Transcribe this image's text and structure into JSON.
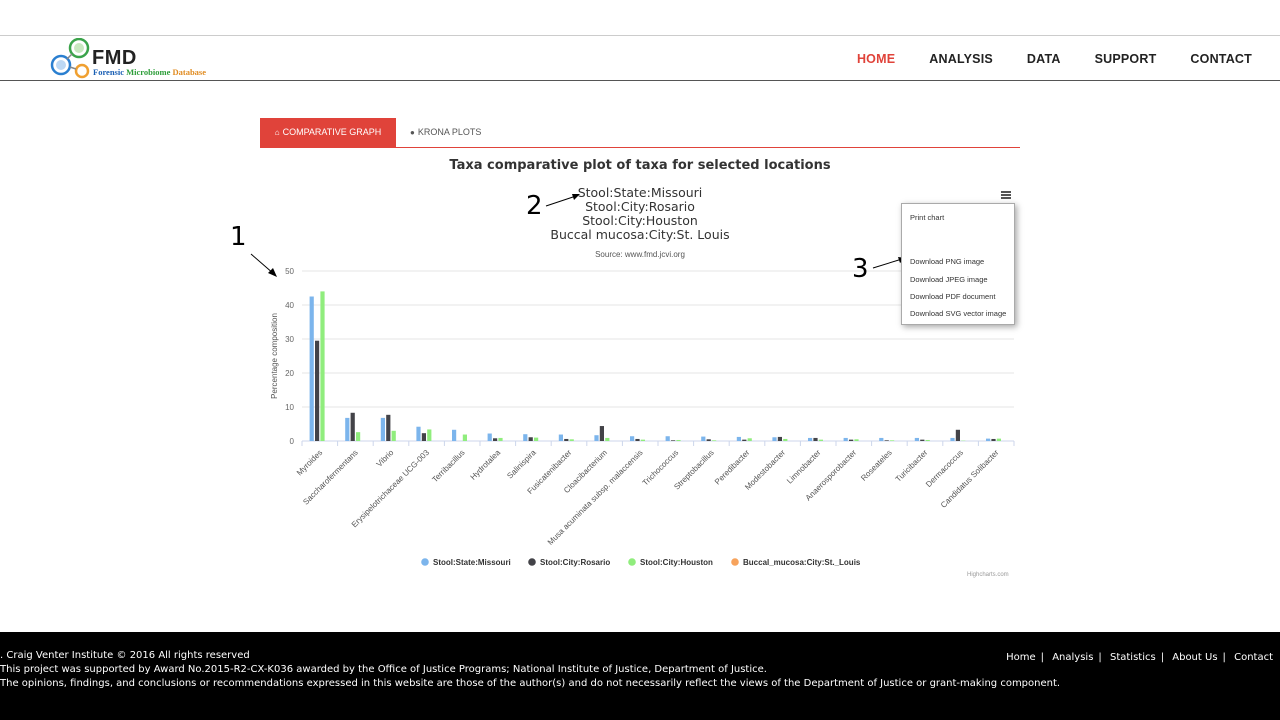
{
  "header": {
    "logo_text": "FMD",
    "logo_sub_1": "Forensic",
    "logo_sub_2": "Microbiome",
    "logo_sub_3": "Database",
    "nav": [
      "HOME",
      "ANALYSIS",
      "DATA",
      "SUPPORT",
      "CONTACT"
    ],
    "active_nav": "HOME"
  },
  "tabs": {
    "comparative": "COMPARATIVE GRAPH",
    "krona": "KRONA PLOTS"
  },
  "chart_menu": {
    "print": "Print chart",
    "png": "Download PNG image",
    "jpeg": "Download JPEG image",
    "pdf": "Download PDF document",
    "svg": "Download SVG vector image"
  },
  "annotations": [
    "1",
    "2",
    "3"
  ],
  "credits": "Highcharts.com",
  "chart_data": {
    "type": "bar",
    "title": "Taxa comparative plot of taxa for selected locations",
    "subtitle": [
      "Stool:State:Missouri",
      "Stool:City:Rosario",
      "Stool:City:Houston",
      "Buccal mucosa:City:St. Louis"
    ],
    "source": "Source: www.fmd.jcvi.org",
    "ylabel": "Percentage composition",
    "ylim": [
      0,
      50
    ],
    "yticks": [
      0,
      10,
      20,
      30,
      40,
      50
    ],
    "grid": true,
    "legend_position": "bottom",
    "categories": [
      "Myroides",
      "Saccharofermentans",
      "Vibrio",
      "Erysipelotrichaceae UCG-003",
      "Terribacillus",
      "Hydrotalea",
      "Salinispira",
      "Fusicatenibacter",
      "Cloacibacterium",
      "Musa acuminata subsp. malaccensis",
      "Trichococcus",
      "Streptobacillus",
      "Peredibacter",
      "Modestobacter",
      "Limnobacter",
      "Anaerosporobacter",
      "Roseateles",
      "Turicibacter",
      "Dermacoccus",
      "Candidatus Solibacter"
    ],
    "series": [
      {
        "name": "Stool:State:Missouri",
        "color": "#7cb5ec",
        "values": [
          42.5,
          6.8,
          6.8,
          4.2,
          3.3,
          2.2,
          2.0,
          1.9,
          1.7,
          1.4,
          1.4,
          1.3,
          1.2,
          1.1,
          0.9,
          0.9,
          0.9,
          0.9,
          0.9,
          0.7
        ]
      },
      {
        "name": "Stool:City:Rosario",
        "color": "#434348",
        "values": [
          29.5,
          8.3,
          7.7,
          2.3,
          0.0,
          0.8,
          1.1,
          0.6,
          4.4,
          0.6,
          0.2,
          0.5,
          0.4,
          1.2,
          0.9,
          0.4,
          0.2,
          0.4,
          3.3,
          0.6
        ]
      },
      {
        "name": "Stool:City:Houston",
        "color": "#90ed7d",
        "values": [
          44.0,
          2.6,
          3.0,
          3.4,
          1.9,
          0.9,
          1.0,
          0.5,
          0.9,
          0.4,
          0.3,
          0.2,
          0.8,
          0.6,
          0.4,
          0.5,
          0.2,
          0.3,
          0.1,
          0.7
        ]
      },
      {
        "name": "Buccal_mucosa:City:St._Louis",
        "color": "#f7a35c",
        "values": [
          0,
          0,
          0,
          0,
          0,
          0,
          0,
          0,
          0,
          0,
          0,
          0,
          0,
          0,
          0,
          0,
          0,
          0,
          0,
          0
        ]
      }
    ]
  },
  "footer": {
    "line1": ". Craig Venter Institute © 2016 All rights reserved",
    "line2": "This project was supported by Award No.2015-R2-CX-K036 awarded by the Office of Justice Programs; National Institute of Justice, Department of Justice.",
    "line3": "The opinions, findings, and conclusions or recommendations expressed in this website are those of the author(s) and do not necessarily reflect the views of the Department of Justice or grant-making component.",
    "links": [
      "Home",
      "Analysis",
      "Statistics",
      "About Us",
      "Contact"
    ]
  }
}
